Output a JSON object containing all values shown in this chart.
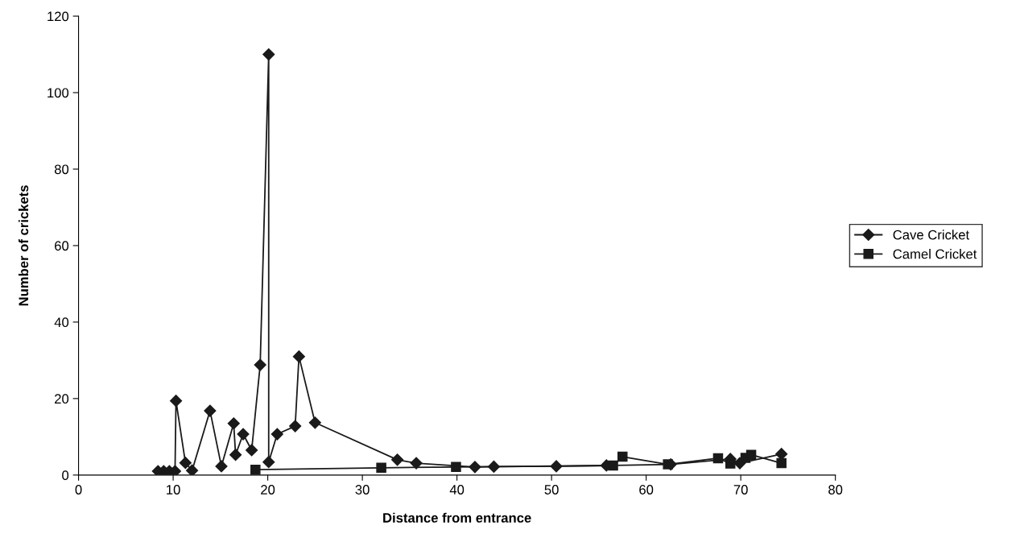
{
  "chart_data": {
    "type": "line",
    "xlabel": "Distance from entrance",
    "ylabel": "Number of crickets",
    "xlim": [
      0,
      80
    ],
    "xticks": [
      0,
      10,
      20,
      30,
      40,
      50,
      60,
      70,
      80
    ],
    "ylim": [
      0,
      120
    ],
    "yticks": [
      0,
      20,
      40,
      60,
      80,
      100,
      120
    ],
    "grid": false,
    "legend": "right",
    "line_style": "solid",
    "series": [
      {
        "name": "Cave Cricket",
        "color": "#1a1a1a",
        "marker": "diamond",
        "x": [
          8.4,
          9.0,
          9.6,
          10.2,
          10.3,
          11.3,
          12.0,
          13.9,
          15.1,
          16.4,
          16.6,
          17.4,
          18.3,
          19.2,
          20.1,
          20.1,
          21.0,
          22.9,
          23.3,
          25.0,
          33.7,
          35.7,
          41.9,
          43.9,
          50.5,
          55.8,
          62.6,
          68.9,
          69.9,
          74.3
        ],
        "values": [
          1,
          1,
          1,
          1,
          19.4,
          3.2,
          1.2,
          16.8,
          2.3,
          13.5,
          5.3,
          10.7,
          6.5,
          28.8,
          110,
          3.4,
          10.7,
          12.8,
          31,
          13.7,
          4.0,
          3.1,
          2.1,
          2.2,
          2.3,
          2.5,
          2.8,
          4.2,
          3.1,
          5.5
        ]
      },
      {
        "name": "Camel Cricket",
        "color": "#1a1a1a",
        "marker": "square",
        "x": [
          18.7,
          32.0,
          39.9,
          56.5,
          57.5,
          62.3,
          67.6,
          68.9,
          70.5,
          71.1,
          74.3
        ],
        "values": [
          1.4,
          1.9,
          2.1,
          2.5,
          4.8,
          2.8,
          4.4,
          3.0,
          4.5,
          5.3,
          3.1
        ]
      }
    ]
  }
}
